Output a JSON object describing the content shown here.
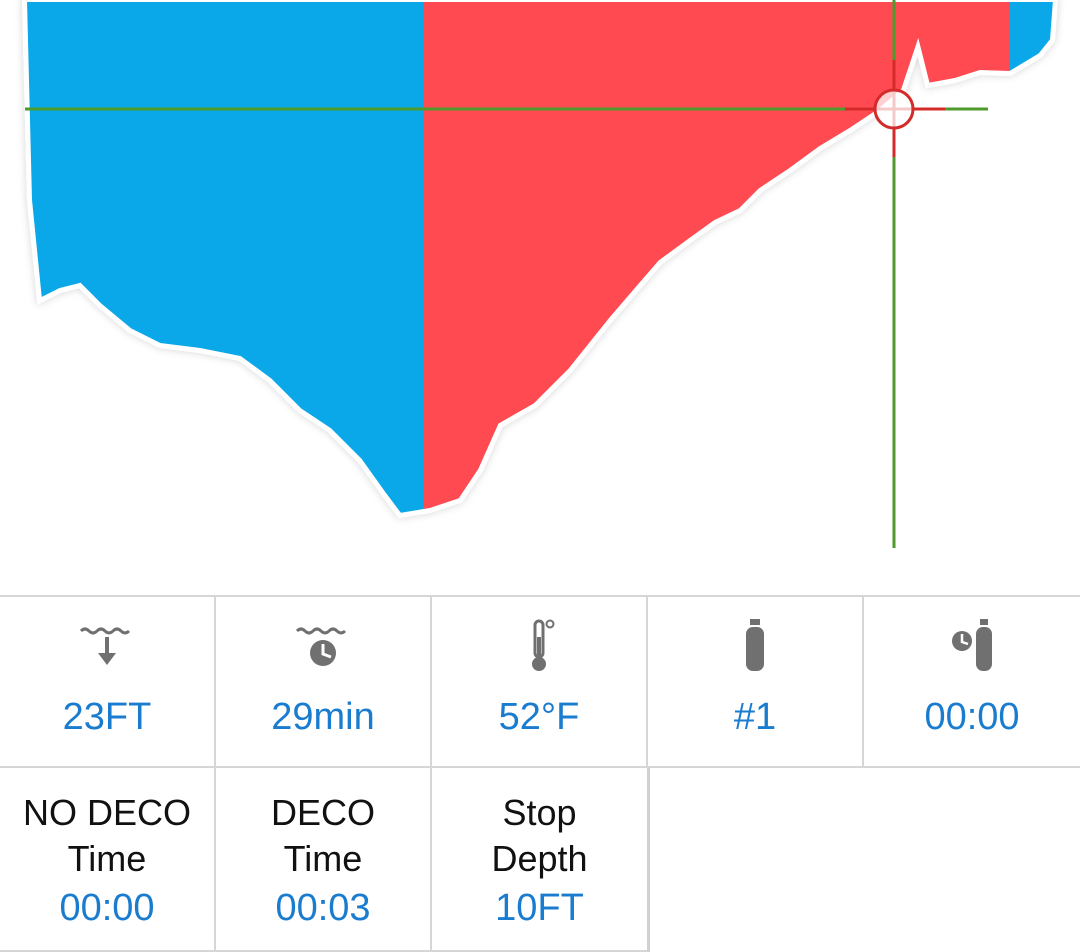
{
  "colors": {
    "no_deco": "#0aa8e8",
    "deco": "#ff4a52",
    "crosshair_green": "#4f9a2c",
    "crosshair_red": "#d42a2a",
    "value_text": "#1a7ccf",
    "icon_gray": "#707070"
  },
  "profile": {
    "segments": [
      "no-deco",
      "deco",
      "no-deco"
    ],
    "crosshair": "dive-cursor"
  },
  "stats": {
    "depth": {
      "icon": "depth-icon",
      "value": "23FT"
    },
    "dive_time": {
      "icon": "dive-time-icon",
      "value": "29min"
    },
    "temperature": {
      "icon": "thermometer-icon",
      "value": "52°F"
    },
    "tank": {
      "icon": "tank-icon",
      "value": "#1"
    },
    "tank_time": {
      "icon": "tank-time-icon",
      "value": "00:00"
    }
  },
  "deco_info": {
    "no_deco": {
      "label_line1": "NO DECO",
      "label_line2": "Time",
      "value": "00:00"
    },
    "deco": {
      "label_line1": "DECO",
      "label_line2": "Time",
      "value": "00:03"
    },
    "stop": {
      "label_line1": "Stop",
      "label_line2": "Depth",
      "value": "10FT"
    }
  }
}
